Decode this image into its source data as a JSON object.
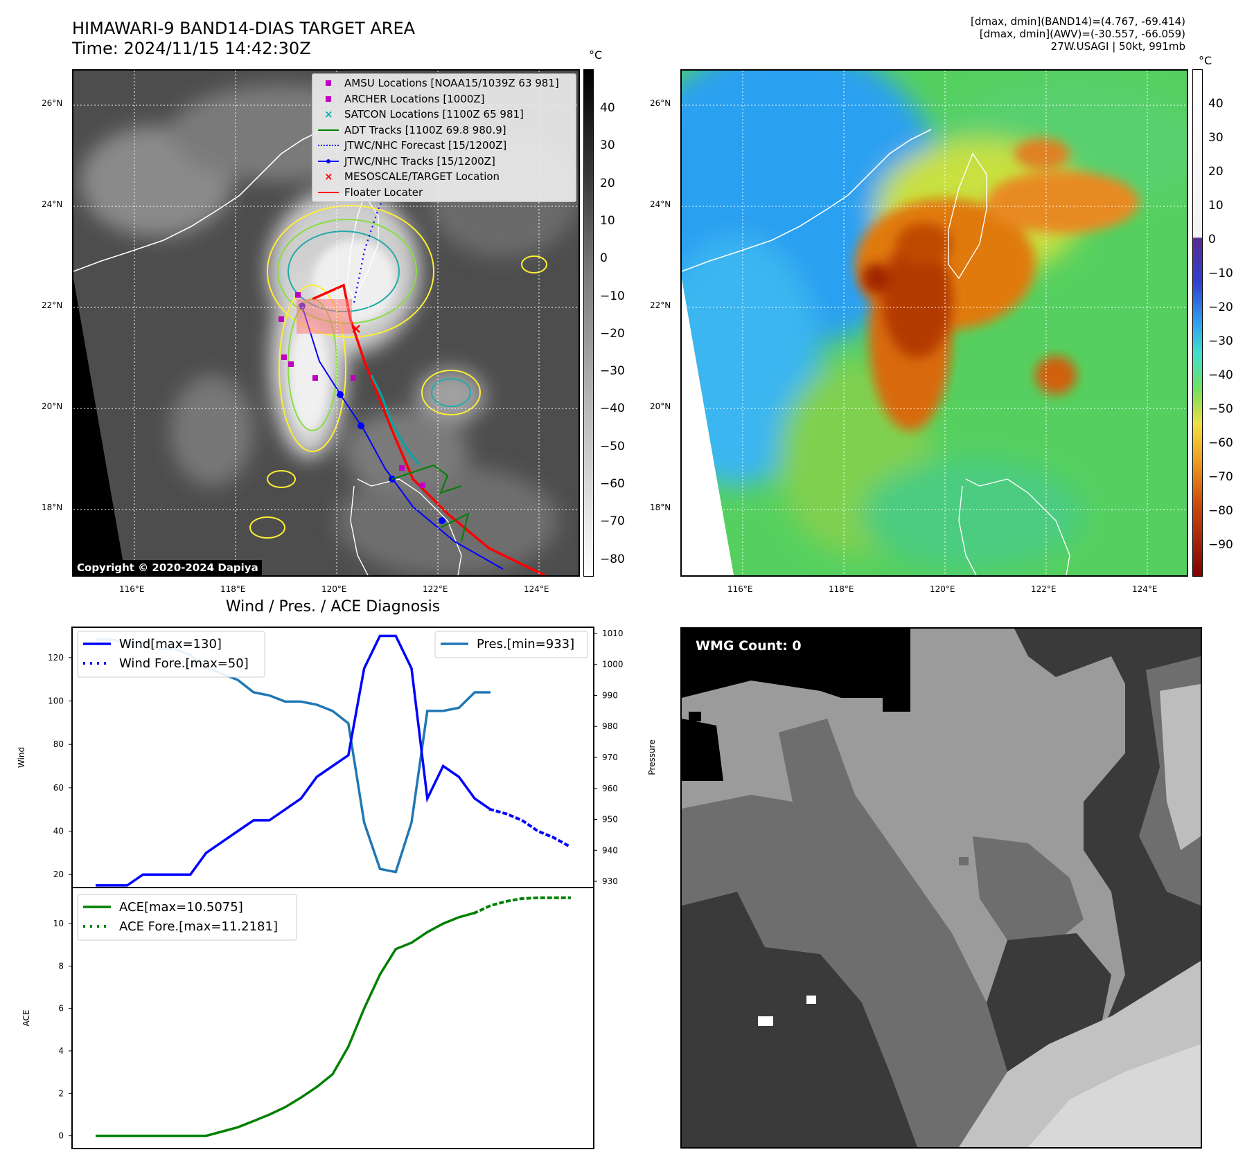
{
  "header": {
    "title_line1": "HIMAWARI-9 BAND14-DIAS TARGET AREA",
    "title_line2": "Time: 2024/11/15 14:42:30Z",
    "info_line1": "[dmax, dmin](BAND14)=(4.767, -69.414)",
    "info_line2": "[dmax, dmin](AWV)=(-30.557, -66.059)",
    "info_line3": "27W.USAGI | 50kt, 991mb"
  },
  "map_axes": {
    "lat_ticks": [
      "26°N",
      "24°N",
      "22°N",
      "20°N",
      "18°N"
    ],
    "lon_ticks": [
      "116°E",
      "118°E",
      "120°E",
      "122°E",
      "124°E"
    ]
  },
  "ir_panel": {
    "colorbar_unit": "°C",
    "colorbar_ticks": [
      "40",
      "30",
      "20",
      "10",
      "0",
      "−10",
      "−20",
      "−30",
      "−40",
      "−50",
      "−60",
      "−70",
      "−80"
    ],
    "copyright": "Copyright © 2020-2024 Dapiya",
    "legend": [
      {
        "label": "AMSU Locations [NOAA15/1039Z 63 981]",
        "symbol": "square",
        "color": "#c000c0"
      },
      {
        "label": "ARCHER Locations [1000Z]",
        "symbol": "square",
        "color": "#c000c0"
      },
      {
        "label": "SATCON Locations [1100Z 65 981]",
        "symbol": "x",
        "color": "#00b0b0"
      },
      {
        "label": "ADT Tracks [1100Z 69.8 980.9]",
        "symbol": "line",
        "color": "#008000"
      },
      {
        "label": "JTWC/NHC Forecast [15/1200Z]",
        "symbol": "dotted",
        "color": "#0000ff"
      },
      {
        "label": "JTWC/NHC Tracks [15/1200Z]",
        "symbol": "line-dot",
        "color": "#0000ff"
      },
      {
        "label": "MESOSCALE/TARGET Location",
        "symbol": "x",
        "color": "#ff0000"
      },
      {
        "label": "Floater Locater",
        "symbol": "line",
        "color": "#ff0000"
      }
    ]
  },
  "awv_panel": {
    "colorbar_unit": "°C",
    "colorbar_ticks": [
      "40",
      "30",
      "20",
      "10",
      "0",
      "−10",
      "−20",
      "−30",
      "−40",
      "−50",
      "−60",
      "−70",
      "−80",
      "−90"
    ]
  },
  "wmg_panel": {
    "label": "WMG Count: 0"
  },
  "chart_data": [
    {
      "type": "line",
      "title": "Wind / Pres. / ACE Diagnosis",
      "x_count": 31,
      "ylabel": "Wind",
      "ylabel_right": "Pressure",
      "ylim": [
        14,
        134
      ],
      "ylim_right": [
        928,
        1012
      ],
      "yticks": [
        20,
        40,
        60,
        80,
        100,
        120
      ],
      "yticks_right": [
        930,
        940,
        950,
        960,
        970,
        980,
        990,
        1000,
        1010
      ],
      "series": [
        {
          "name": "Wind[max=130]",
          "axis": "left",
          "style": "solid",
          "color": "#0000ff",
          "values": [
            15,
            15,
            15,
            20,
            20,
            20,
            20,
            30,
            35,
            40,
            45,
            45,
            50,
            55,
            65,
            70,
            75,
            115,
            130,
            130,
            115,
            55,
            70,
            65,
            55,
            50,
            null,
            null,
            null,
            null,
            null
          ]
        },
        {
          "name": "Wind Fore.[max=50]",
          "axis": "left",
          "style": "dotted",
          "color": "#0000ff",
          "values": [
            null,
            null,
            null,
            null,
            null,
            null,
            null,
            null,
            null,
            null,
            null,
            null,
            null,
            null,
            null,
            null,
            null,
            null,
            null,
            null,
            null,
            null,
            null,
            null,
            null,
            50,
            48,
            45,
            40,
            37,
            33
          ]
        },
        {
          "name": "Pres.[min=933]",
          "axis": "right",
          "style": "solid",
          "color": "#1f77b4",
          "values": [
            1008,
            1008,
            1007,
            1007,
            1005,
            1005,
            1003,
            999,
            997,
            995,
            991,
            990,
            988,
            988,
            987,
            985,
            981,
            949,
            934,
            933,
            949,
            985,
            985,
            986,
            991,
            991,
            null,
            null,
            null,
            null,
            null
          ]
        }
      ]
    },
    {
      "type": "line",
      "x_count": 31,
      "ylabel": "ACE",
      "ylim": [
        -0.6,
        11.7
      ],
      "yticks": [
        0,
        2,
        4,
        6,
        8,
        10
      ],
      "series": [
        {
          "name": "ACE[max=10.5075]",
          "style": "solid",
          "color": "#008000",
          "values": [
            0,
            0,
            0,
            0,
            0,
            0,
            0,
            0,
            0.2,
            0.4,
            0.7,
            1.0,
            1.35,
            1.8,
            2.3,
            2.9,
            4.2,
            6.0,
            7.6,
            8.8,
            9.1,
            9.6,
            10.0,
            10.3,
            10.5075,
            null,
            null,
            null,
            null,
            null,
            null
          ]
        },
        {
          "name": "ACE Fore.[max=11.2181]",
          "style": "dotted",
          "color": "#008000",
          "values": [
            null,
            null,
            null,
            null,
            null,
            null,
            null,
            null,
            null,
            null,
            null,
            null,
            null,
            null,
            null,
            null,
            null,
            null,
            null,
            null,
            null,
            null,
            null,
            null,
            10.5075,
            10.85,
            11.05,
            11.18,
            11.2181,
            11.2181,
            11.2181
          ]
        }
      ]
    }
  ]
}
